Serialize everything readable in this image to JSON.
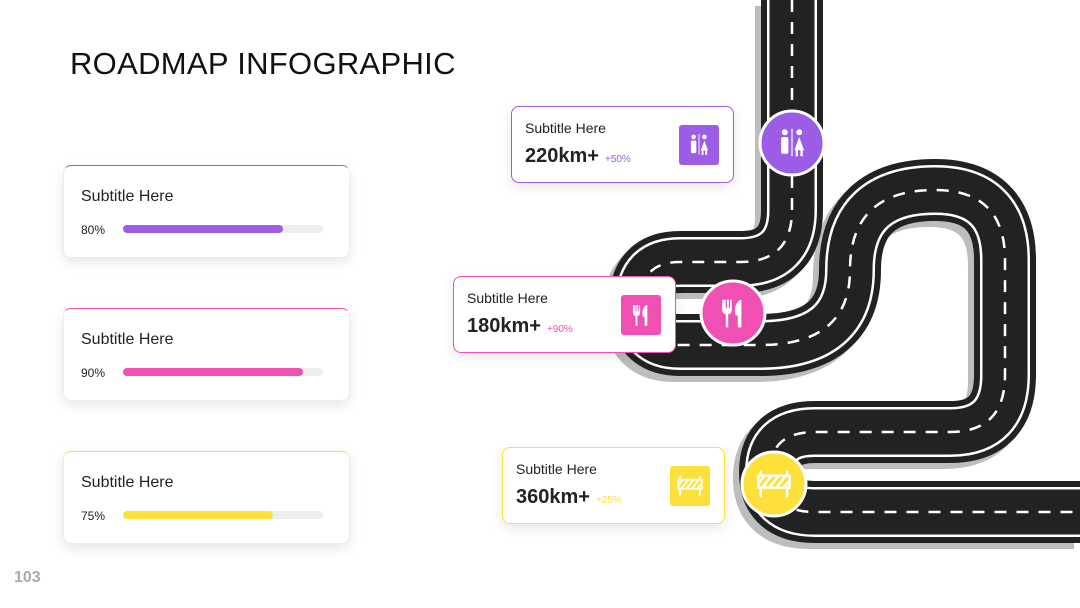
{
  "header": {
    "title": "ROADMAP INFOGRAPHIC"
  },
  "progress": [
    {
      "subtitle": "Subtitle Here",
      "value": 80,
      "label": "80%",
      "color": "#9b5de5"
    },
    {
      "subtitle": "Subtitle Here",
      "value": 90,
      "label": "90%",
      "color": "#f04fb4"
    },
    {
      "subtitle": "Subtitle Here",
      "value": 75,
      "label": "75%",
      "color": "#fde13a"
    }
  ],
  "stops": [
    {
      "subtitle": "Subtitle Here",
      "distance": "220km+",
      "change": "+50%",
      "color": "#9b5de5"
    },
    {
      "subtitle": "Subtitle Here",
      "distance": "180km+",
      "change": "+90%",
      "color": "#f04fb4"
    },
    {
      "subtitle": "Subtitle Here",
      "distance": "360km+",
      "change": "+25%",
      "color": "#fde13a"
    }
  ],
  "page_number": "103"
}
